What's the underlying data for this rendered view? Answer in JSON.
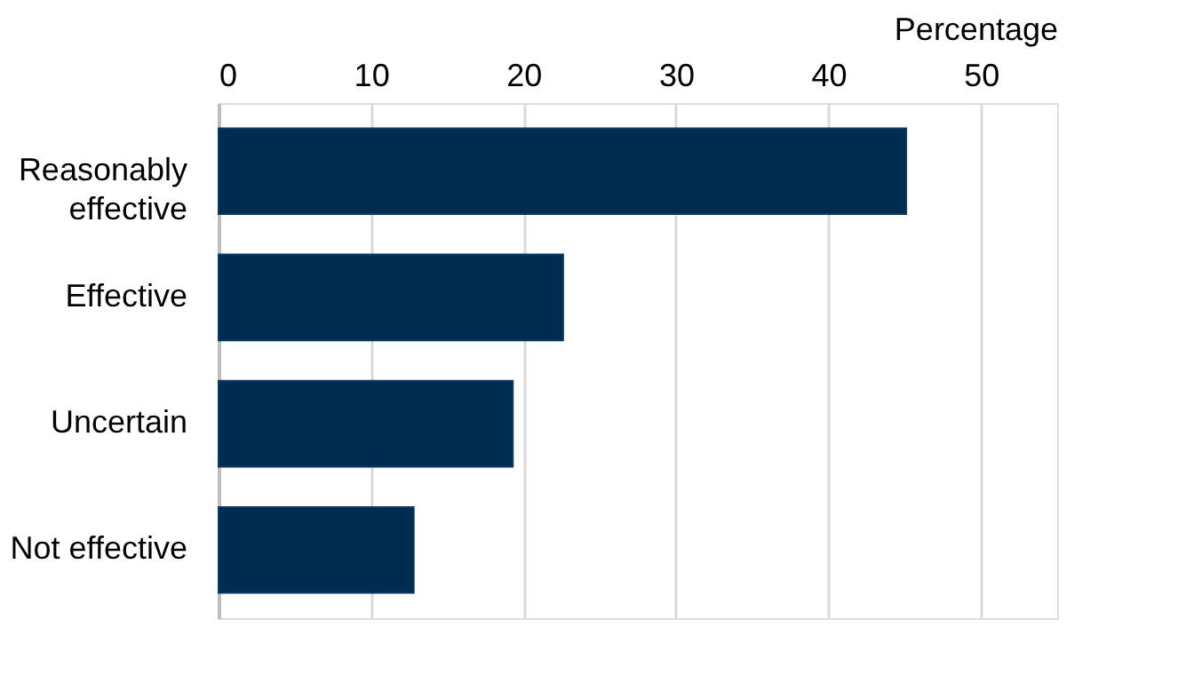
{
  "chart_data": {
    "type": "bar",
    "orientation": "horizontal",
    "xlabel": "Percentage",
    "categories": [
      "Reasonably effective",
      "Effective",
      "Uncertain",
      "Not effective"
    ],
    "values": [
      45.1,
      22.6,
      19.3,
      12.8
    ],
    "color": "#002b50",
    "xlim": [
      0,
      55
    ],
    "xticks": [
      0,
      10,
      20,
      30,
      40,
      50
    ],
    "grid": "x"
  }
}
